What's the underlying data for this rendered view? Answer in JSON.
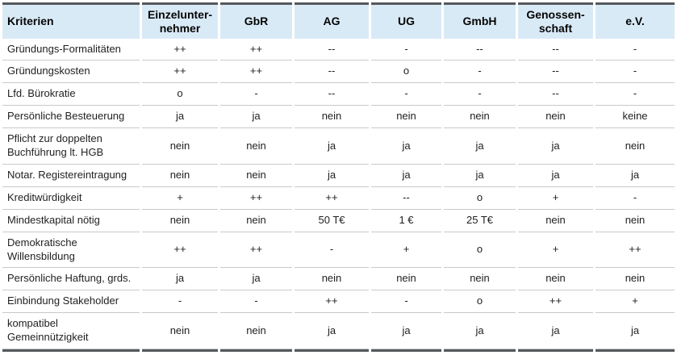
{
  "table": {
    "header": {
      "criteria_label": "Kriterien",
      "columns": [
        "Einzelunter-nehmer",
        "GbR",
        "AG",
        "UG",
        "GmbH",
        "Genossen-schaft",
        "e.V."
      ]
    },
    "rows": [
      {
        "label": "Gründungs-Formalitäten",
        "values": [
          "++",
          "++",
          "--",
          "-",
          "--",
          "--",
          "-"
        ]
      },
      {
        "label": "Gründungskosten",
        "values": [
          "++",
          "++",
          "--",
          "o",
          "-",
          "--",
          "-"
        ]
      },
      {
        "label": "Lfd. Bürokratie",
        "values": [
          "o",
          "-",
          "--",
          "-",
          "-",
          "--",
          "-"
        ]
      },
      {
        "label": "Persönliche Besteuerung",
        "values": [
          "ja",
          "ja",
          "nein",
          "nein",
          "nein",
          "nein",
          "keine"
        ]
      },
      {
        "label": "Pflicht zur doppelten Buchführung lt. HGB",
        "values": [
          "nein",
          "nein",
          "ja",
          "ja",
          "ja",
          "ja",
          "nein"
        ]
      },
      {
        "label": "Notar. Registereintragung",
        "values": [
          "nein",
          "nein",
          "ja",
          "ja",
          "ja",
          "ja",
          "ja"
        ]
      },
      {
        "label": "Kreditwürdigkeit",
        "values": [
          "+",
          "++",
          "++",
          "--",
          "o",
          "+",
          "-"
        ]
      },
      {
        "label": "Mindestkapital nötig",
        "values": [
          "nein",
          "nein",
          "50 T€",
          "1 €",
          "25 T€",
          "nein",
          "nein"
        ]
      },
      {
        "label": "Demokratische Willensbildung",
        "values": [
          "++",
          "++",
          "-",
          "+",
          "o",
          "+",
          "++"
        ]
      },
      {
        "label": "Persönliche Haftung, grds.",
        "values": [
          "ja",
          "ja",
          "nein",
          "nein",
          "nein",
          "nein",
          "nein"
        ]
      },
      {
        "label": "Einbindung Stakeholder",
        "values": [
          "-",
          "-",
          "++",
          "-",
          "o",
          "++",
          "+"
        ]
      },
      {
        "label": "kompatibel Gemeinnützigkeit",
        "values": [
          "nein",
          "nein",
          "ja",
          "ja",
          "ja",
          "ja",
          "ja"
        ]
      }
    ],
    "colors": {
      "header_bg": "#d9eaf7",
      "bar": "#55595c",
      "row_divider": "#c9c9c9",
      "text": "#1f1f1f"
    }
  }
}
